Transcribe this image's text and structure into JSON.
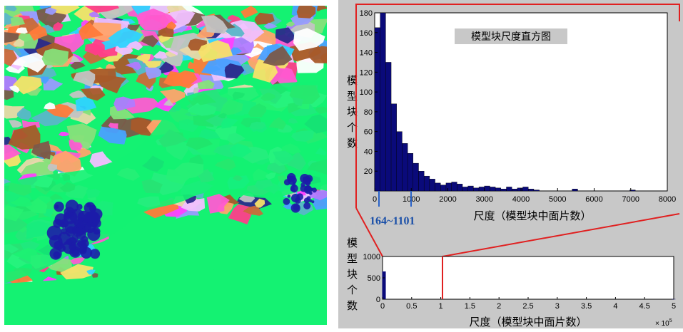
{
  "colors": {
    "bar": "#0a0a7a",
    "zoom": "#e02020",
    "panel_bg": "#c8c8c8",
    "plot_bg": "#ffffff",
    "range_marker": "#2a63c8",
    "water": "#14f272"
  },
  "annotations": {
    "range_text": "164~1101"
  },
  "chart_data": [
    {
      "type": "bar",
      "title": "模型块尺度直方图",
      "xlabel": "尺度（模型块中面片数）",
      "ylabel": "模型块个数",
      "xlim": [
        0,
        8000
      ],
      "ylim": [
        0,
        180
      ],
      "bin_width": 150,
      "x_ticks": [
        "0",
        "1000",
        "2000",
        "3000",
        "4000",
        "5000",
        "6000",
        "7000",
        "8000"
      ],
      "y_ticks": [
        "20",
        "40",
        "60",
        "80",
        "100",
        "120",
        "140",
        "160",
        "180"
      ],
      "x": [
        75,
        225,
        375,
        525,
        675,
        825,
        975,
        1125,
        1275,
        1425,
        1575,
        1725,
        1875,
        2025,
        2175,
        2325,
        2475,
        2625,
        2775,
        2925,
        3075,
        3225,
        3375,
        3525,
        3675,
        3825,
        3975,
        4125,
        4275,
        4425,
        5475,
        7050
      ],
      "values": [
        165,
        180,
        130,
        88,
        60,
        48,
        38,
        28,
        20,
        15,
        12,
        8,
        6,
        8,
        9,
        7,
        4,
        5,
        3,
        4,
        5,
        4,
        3,
        2,
        4,
        2,
        3,
        4,
        2,
        1,
        2,
        1
      ],
      "grid": false
    },
    {
      "type": "bar",
      "xlabel": "尺度（模型块中面片数）",
      "ylabel": "模型块个数",
      "xlim": [
        0,
        500000
      ],
      "ylim": [
        0,
        1000
      ],
      "x_ticks": [
        "0",
        "0.5",
        "1",
        "1.5",
        "2",
        "2.5",
        "3",
        "3.5",
        "4",
        "4.5",
        "5"
      ],
      "y_ticks": [
        "0",
        "500",
        "1000"
      ],
      "x_multiplier": "× 10",
      "x_multiplier_exponent": "5",
      "x": [
        2500,
        500000
      ],
      "values": [
        650,
        5
      ],
      "grid": false
    }
  ]
}
